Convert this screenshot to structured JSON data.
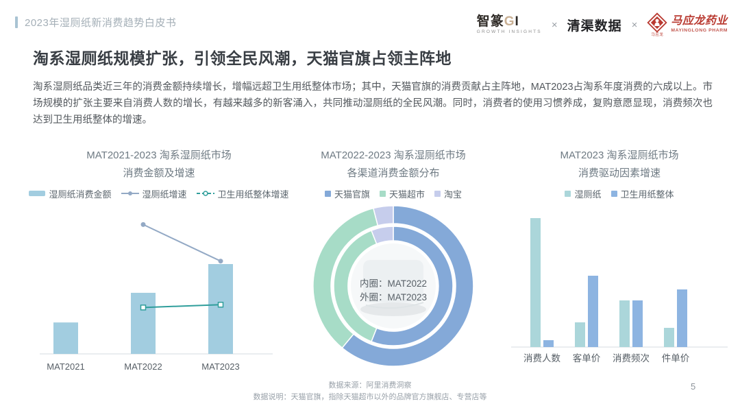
{
  "page": {
    "number": "5"
  },
  "header": {
    "breadcrumb": "2023年湿厕纸新消费趋势白皮书",
    "logos": {
      "zhizhuan_main": "智篆",
      "zhizhuan_g": "G",
      "zhizhuan_i": "I",
      "zhizhuan_sub": "GROWTH INSIGHTS",
      "separator": "×",
      "qingqu": "清渠数据",
      "mayinglong_caption": "马应龙",
      "mayinglong_name": "马应龙药业",
      "mayinglong_sub": "MAYINGLONG PHARM",
      "brand_red": "#b93a31"
    }
  },
  "headline": "淘系湿厕纸规模扩张，引领全民风潮，天猫官旗占领主阵地",
  "body_text": "淘系湿厕纸品类近三年的消费金额持续增长，增幅远超卫生用纸整体市场；其中，天猫官旗的消费贡献占主阵地，MAT2023占淘系年度消费的六成以上。市场规模的扩张主要来自消费人数的增长，有越来越多的新客涌入，共同推动湿厕纸的全民风潮。同时，消费者的使用习惯养成，复购意愿显现，消费频次也达到卫生用纸整体的增速。",
  "footer": {
    "source": "数据来源：阿里消费洞察",
    "note": "数据说明：天猫官旗，指除天猫超市以外的品牌官方旗舰店、专营店等"
  },
  "chart_data": [
    {
      "id": "amount-and-growth",
      "type": "bar+line",
      "title_line1": "MAT2021-2023 淘系湿厕纸市场",
      "title_line2": "消费金额及增速",
      "categories": [
        "MAT2021",
        "MAT2022",
        "MAT2023"
      ],
      "swatches": [
        "bar",
        "line-solid",
        "line-dashed"
      ],
      "series": [
        {
          "name": "湿厕纸消费金额",
          "type": "bar",
          "color": "#a2cde0",
          "values": [
            35,
            68,
            100
          ]
        },
        {
          "name": "湿厕纸增速",
          "type": "line",
          "style": "solid",
          "color": "#93a9c5",
          "values": [
            null,
            92,
            66
          ]
        },
        {
          "name": "卫生用纸整体增速",
          "type": "line",
          "style": "dashed",
          "color": "#2f9e9b",
          "values": [
            null,
            33,
            35
          ]
        }
      ],
      "ylabel": "",
      "xlabel": "",
      "ylim": [
        0,
        100
      ],
      "grid": false,
      "legend_position": "top",
      "value_basis": "relative height estimate, no numeric labels shown"
    },
    {
      "id": "channel-distribution",
      "type": "pie",
      "title_line1": "MAT2022-2023 淘系湿厕纸市场",
      "title_line2": "各渠道消费金额分布",
      "legend": [
        "天猫官旗",
        "天猫超市",
        "淘宝"
      ],
      "colors": [
        "#84a9d8",
        "#a7dcc7",
        "#c6cdec"
      ],
      "center_label_line1": "内圈：MAT2022",
      "center_label_line2": "外圈：MAT2023",
      "rings": [
        {
          "name": "MAT2022",
          "position": "inner",
          "values": [
            56,
            38,
            6
          ]
        },
        {
          "name": "MAT2023",
          "position": "outer",
          "values": [
            61,
            35,
            4
          ]
        }
      ],
      "legend_position": "top",
      "value_basis": "percent share estimate, no numeric labels shown"
    },
    {
      "id": "driver-growth",
      "type": "bar",
      "title_line1": "MAT2023 淘系湿厕纸市场",
      "title_line2": "消费驱动因素增速",
      "categories": [
        "消费人数",
        "客单价",
        "消费频次",
        "件单价"
      ],
      "swatches": [
        "square",
        "square"
      ],
      "series": [
        {
          "name": "湿厕纸",
          "color": "#abd6da",
          "values": [
            94,
            18,
            34,
            14
          ]
        },
        {
          "name": "卫生用纸整体",
          "color": "#8db4e1",
          "values": [
            5,
            52,
            34,
            42
          ]
        }
      ],
      "ylabel": "",
      "xlabel": "",
      "ylim": [
        0,
        100
      ],
      "grid": false,
      "legend_position": "top",
      "value_basis": "relative height estimate, no numeric labels shown"
    }
  ]
}
